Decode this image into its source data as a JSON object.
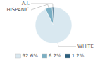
{
  "chart_data": {
    "type": "pie",
    "categories": [
      "WHITE",
      "HISPANIC",
      "A.I."
    ],
    "values": [
      92.6,
      6.2,
      1.2
    ],
    "value_labels": [
      "92.6%",
      "6.2%",
      "1.2%"
    ],
    "colors": [
      "#d9e8f0",
      "#7aafc4",
      "#2c5f7e"
    ],
    "legend": "bottom"
  }
}
